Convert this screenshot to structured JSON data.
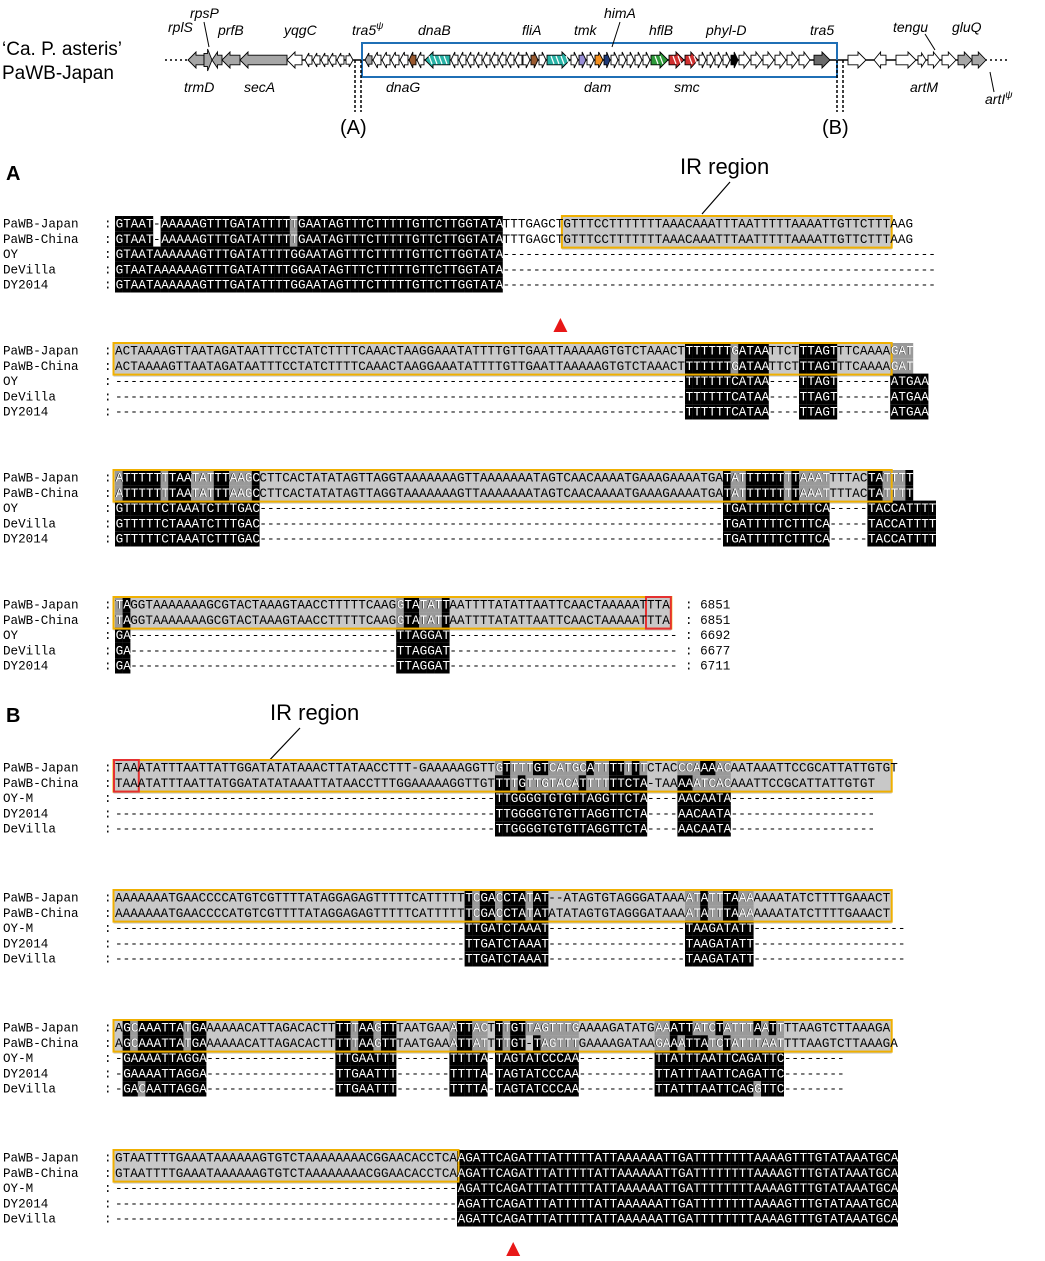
{
  "colors": {
    "black": "#000000",
    "identical": "#000000",
    "similar": "#9a9a9a",
    "ir_fill": "#c8c8c8",
    "ir_border": "#f0b000",
    "terminal_box": "#e53030",
    "region_box": "#1f6fb5",
    "arrowhead": "#e81818",
    "gene_grey": "#a6a6a6",
    "gene_teal": "#28b3a6",
    "gene_brown": "#9a5a30",
    "gene_orange": "#f39020",
    "gene_lavender": "#9a90d8",
    "gene_navy": "#1f3a78",
    "gene_green": "#2e9a3a",
    "gene_red": "#d03030"
  },
  "header": {
    "organism_line1": "‘Ca. P. asteris’",
    "organism_line2": "PaWB-Japan"
  },
  "genes_above": [
    {
      "id": "rplS",
      "label": "rplS",
      "pseudo": false
    },
    {
      "id": "rpsP",
      "label": "rpsP",
      "pseudo": false
    },
    {
      "id": "prfB",
      "label": "prfB",
      "pseudo": false
    },
    {
      "id": "yqgC",
      "label": "yqgC",
      "pseudo": false
    },
    {
      "id": "tra5p",
      "label": "tra5",
      "pseudo": true
    },
    {
      "id": "dnaB",
      "label": "dnaB",
      "pseudo": false
    },
    {
      "id": "fliA",
      "label": "fliA",
      "pseudo": false
    },
    {
      "id": "tmk",
      "label": "tmk",
      "pseudo": false
    },
    {
      "id": "himA",
      "label": "himA",
      "pseudo": false
    },
    {
      "id": "hflB",
      "label": "hflB",
      "pseudo": false
    },
    {
      "id": "phylD",
      "label": "phyl-D",
      "pseudo": false
    },
    {
      "id": "tra5",
      "label": "tra5",
      "pseudo": false
    },
    {
      "id": "tengu",
      "label": "tengu",
      "pseudo": false
    },
    {
      "id": "gluQ",
      "label": "gluQ",
      "pseudo": false
    }
  ],
  "genes_below": [
    {
      "id": "trmD",
      "label": "trmD",
      "pseudo": false
    },
    {
      "id": "secA",
      "label": "secA",
      "pseudo": false
    },
    {
      "id": "dnaG",
      "label": "dnaG",
      "pseudo": false
    },
    {
      "id": "dam",
      "label": "dam",
      "pseudo": false
    },
    {
      "id": "smc",
      "label": "smc",
      "pseudo": false
    },
    {
      "id": "artM",
      "label": "artM",
      "pseudo": false
    },
    {
      "id": "artI",
      "label": "artI",
      "pseudo": true
    }
  ],
  "markers": [
    "(A)",
    "(B)"
  ],
  "panels": [
    {
      "id": "A",
      "label": "A",
      "ir_label": "IR region",
      "blocks": [
        {
          "rows": [
            {
              "name": "PaWB-Japan",
              "seq": "GTAAT-AAAAAGTTTGATATTTTTGAATAGTTTCTTTTTGTTCTTGGTATATTTGAGCTGTTTCCTTTTTTTAAACAAATTTAATTTTTAAAATTGTTCTTTAAG"
            },
            {
              "name": "PaWB-China",
              "seq": "GTAAT-AAAAAGTTTGATATTTTTGAATAGTTTCTTTTTGTTCTTGGTATATTTGAGCTGTTTCCTTTTTTTAAACAAATTTAATTTTTAAAATTGTTCTTTAAG"
            },
            {
              "name": "OY",
              "seq": "GTAATAAAAAAGTTTGATATTTTGGAATAGTTTCTTTTTGTTCTTGGTATA---------------------------------------------------------"
            },
            {
              "name": "DeVilla",
              "seq": "GTAATAAAAAAGTTTGATATTTTGGAATAGTTTCTTTTTGTTCTTGGTATA---------------------------------------------------------"
            },
            {
              "name": "DY2014",
              "seq": "GTAATAAAAAAGTTTGATATTTTGGAATAGTTTCTTTTTGTTCTTGGTATA---------------------------------------------------------"
            }
          ]
        },
        {
          "rows": [
            {
              "name": "PaWB-Japan",
              "seq": "ACTAAAAGTTAATAGATAATTTCCTATCTTTTCAAACTAAGGAAATATTTTGTTGAATTAAAAAGTGTCTAAACTTTTTTTGATAATTCTTTAGTTTCAAAAGAT"
            },
            {
              "name": "PaWB-China",
              "seq": "ACTAAAAGTTAATAGATAATTTCCTATCTTTTCAAACTAAGGAAATATTTTGTTGAATTAAAAAGTGTCTAAACTTTTTTTGATAATTCTTTAGTTTCAAAAGAT"
            },
            {
              "name": "OY",
              "seq": "---------------------------------------------------------------------------TTTTTTCATAA----TTAGT-------ATGAA"
            },
            {
              "name": "DeVilla",
              "seq": "---------------------------------------------------------------------------TTTTTTCATAA----TTAGT-------ATGAA"
            },
            {
              "name": "DY2014",
              "seq": "---------------------------------------------------------------------------TTTTTTCATAA----TTAGT-------ATGAA"
            }
          ]
        },
        {
          "rows": [
            {
              "name": "PaWB-Japan",
              "seq": "ATTTTTTTAATATTTAAGCCTTCACTATATAGTTAGGTAAAAAAAGTTAAAAAAATAGTCAACAAAATGAAAGAAAATGATATTTTTTTTAAATTTTACTATTTT"
            },
            {
              "name": "PaWB-China",
              "seq": "ATTTTTTTAATATTTAAGCCTTCACTATATAGTTAGGTAAAAAAAGTTAAAAAAATAGTCAACAAAATGAAAGAAAATGATATTTTTTTTAAATTTTACTATTTT"
            },
            {
              "name": "OY",
              "seq": "GTTTTTCTAAATCTTTGAC-------------------------------------------------------------TGATTTTTCTTTCA-----TACCATTTT"
            },
            {
              "name": "DeVilla",
              "seq": "GTTTTTCTAAATCTTTGAC-------------------------------------------------------------TGATTTTTCTTTCA-----TACCATTTT"
            },
            {
              "name": "DY2014",
              "seq": "GTTTTTCTAAATCTTTGAC-------------------------------------------------------------TGATTTTTCTTTCA-----TACCATTTT"
            }
          ]
        },
        {
          "rows": [
            {
              "name": "PaWB-Japan",
              "seq": "TAGGTAAAAAAAGCGTACTAAAGTAACCTTTTTCAAGGTATATTAATTTTATATTAATTCAACTAAAAATTTA",
              "pos": "6851"
            },
            {
              "name": "PaWB-China",
              "seq": "TAGGTAAAAAAAGCGTACTAAAGTAACCTTTTTCAAGGTATATTAATTTTATATTAATTCAACTAAAAATTTA",
              "pos": "6851"
            },
            {
              "name": "OY",
              "seq": "GA-----------------------------------TTAGGAT------------------------------",
              "pos": "6692"
            },
            {
              "name": "DeVilla",
              "seq": "GA-----------------------------------TTAGGAT------------------------------",
              "pos": "6677"
            },
            {
              "name": "DY2014",
              "seq": "GA-----------------------------------TTAGGAT------------------------------",
              "pos": "6711"
            }
          ]
        }
      ]
    },
    {
      "id": "B",
      "label": "B",
      "ir_label": "IR region",
      "blocks": [
        {
          "rows": [
            {
              "name": "PaWB-Japan",
              "seq": "TAAATATTTAATTATTGGATATATAAACTTATAACCTTT-GAAAAAGGTTGTTTTGTCATGCATTTTTTTCTACCCAAAACAATAAATTCCGCATTATTGTGT"
            },
            {
              "name": "PaWB-China",
              "seq": "TAAATATTTAATTATGGATATATAAATTATAACCTTTGGAAAAAGGTTGTTTTGTTGTACATTTTTTCTA-TAAAAATCACAAATTCCGCATTATTGTGT"
            },
            {
              "name": "OY-M",
              "seq": "--------------------------------------------------TTGGGGTGTGTTAGGTTCTA----AACAATA-------------------"
            },
            {
              "name": "DY2014",
              "seq": "--------------------------------------------------TTGGGGTGTGTTAGGTTCTA----AACAATA-------------------"
            },
            {
              "name": "DeVilla",
              "seq": "--------------------------------------------------TTGGGGTGTGTTAGGTTCTA----AACAATA-------------------"
            }
          ]
        },
        {
          "rows": [
            {
              "name": "PaWB-Japan",
              "seq": "AAAAAAATGAACCCCATGTCGTTTTATAGGAGAGTTTTTCATTTTTTCGACCTATAT--ATAGTGTAGGGATAAAATATTTAAAAAAATATCTTTTGAAACT"
            },
            {
              "name": "PaWB-China",
              "seq": "AAAAAAATGAACCCCATGTCGTTTTATAGGAGAGTTTTTCATTTTTTCGACCTATATATATAGTGTAGGGATAAAATATTTAAAAAAATATCTTTTGAAACT"
            },
            {
              "name": "OY-M",
              "seq": "----------------------------------------------TTGATCTAAAT------------------TAAGATATT--------------------"
            },
            {
              "name": "DY2014",
              "seq": "----------------------------------------------TTGATCTAAAT------------------TAAGATATT--------------------"
            },
            {
              "name": "DeVilla",
              "seq": "----------------------------------------------TTGATCTAAAT------------------TAAGATATT--------------------"
            }
          ]
        },
        {
          "rows": [
            {
              "name": "PaWB-Japan",
              "seq": "AGCAAATTATGAAAAAACATTAGACACTTTTTAAGTTTAATGAAATTACTTTGTTAGTTTGAAAAGATATGAAATTATCTATTTAATTTTAAGTCTTAAAGA"
            },
            {
              "name": "PaWB-China",
              "seq": "AGCAAATTATGAAAAAACATTAGACACTTTTTAAGTTTAATGAAATTATTTTGT-TAGTTTGAAAAGATAAGAAATTATCTATTTAATTTTAAGTCTTAAAGA"
            },
            {
              "name": "OY-M",
              "seq": "-GAAAATTAGGA-----------------TTGAATTT-------TTTTA-TAGTATCCCAA----------TTATTTAATTCAGATTC--------"
            },
            {
              "name": "DY2014",
              "seq": "-GAAAATTAGGA-----------------TTGAATTT-------TTTTA-TAGTATCCCAA----------TTATTTAATTCAGATTC--------"
            },
            {
              "name": "DeVilla",
              "seq": "-GACAATTAGGA-----------------TTGAATTT-------TTTTA-TAGTATCCCAA----------TTATTTAATTCAGGTTC--------"
            }
          ]
        },
        {
          "rows": [
            {
              "name": "PaWB-Japan",
              "seq": "GTAATTTTGAAATAAAAAAGTGTCTAAAAAAAACGGAACACCTCAAGATTCAGATTTATTTTTATTAAAAAATTGATTTTTTTTAAAAGTTTGTATAAATGCA"
            },
            {
              "name": "PaWB-China",
              "seq": "GTAATTTTGAAATAAAAAAGTGTCTAAAAAAAACGGAACACCTCAAGATTCAGATTTATTTTTATTAAAAAATTGATTTTTTTTAAAAGTTTGTATAAATGCA"
            },
            {
              "name": "OY-M",
              "seq": "---------------------------------------------AGATTCAGATTTATTTTTATTAAAAAATTGATTTTTTTTAAAAGTTTGTATAAATGCA"
            },
            {
              "name": "DY2014",
              "seq": "---------------------------------------------AGATTCAGATTTATTTTTATTAAAAAATTGATTTTTTTTAAAAGTTTGTATAAATGCA"
            },
            {
              "name": "DeVilla",
              "seq": "---------------------------------------------AGATTCAGATTTATTTTTATTAAAAAATTGATTTTTTTTAAAAGTTTGTATAAATGCA"
            }
          ]
        }
      ]
    }
  ]
}
